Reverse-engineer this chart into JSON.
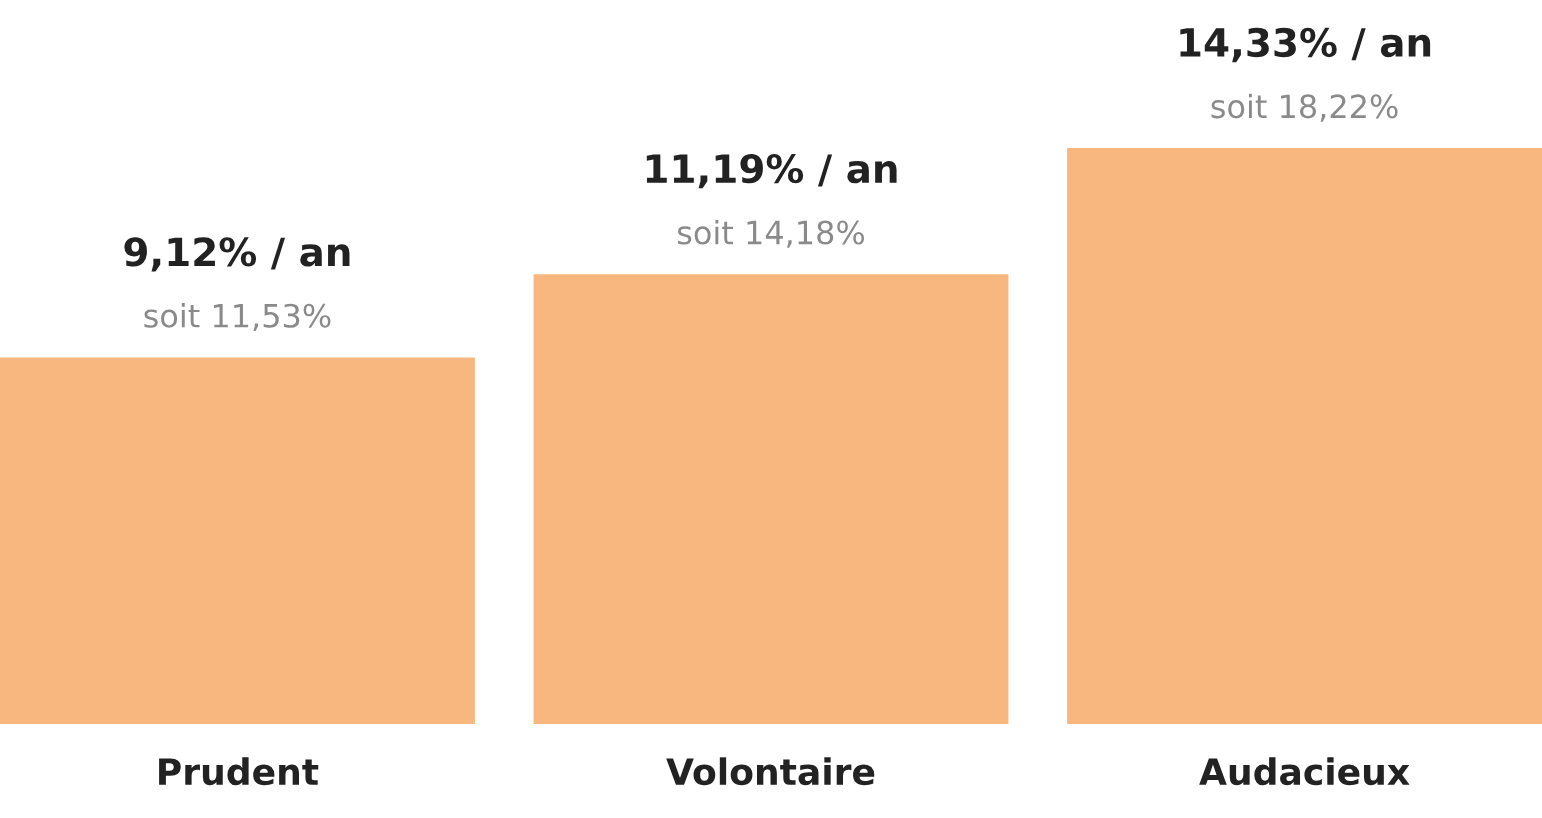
{
  "chart_data": {
    "type": "bar",
    "categories": [
      "Prudent",
      "Volontaire",
      "Audacieux"
    ],
    "values": [
      9.12,
      11.19,
      14.33
    ],
    "color": "#f8b77e",
    "value_labels": [
      "9,12% / an",
      "11,19% / an",
      "14,33% / an"
    ],
    "annotations": [
      {
        "text": "soit 11,53%",
        "x": "Prudent",
        "y": 9.12
      },
      {
        "text": "soit 14,18%",
        "x": "Volontaire",
        "y": 11.19
      },
      {
        "text": "soit 18,22%",
        "x": "Audacieux",
        "y": 14.33
      }
    ],
    "grid": false,
    "legend": false
  }
}
